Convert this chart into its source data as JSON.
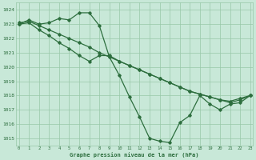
{
  "bg_color": "#c8e8d8",
  "line_color": "#2d6e3e",
  "grid_color": "#98c8a8",
  "title": "Graphe pression niveau de la mer (hPa)",
  "ylim": [
    1014.5,
    1024.5
  ],
  "xlim": [
    -0.3,
    23.3
  ],
  "yticks": [
    1015,
    1016,
    1017,
    1018,
    1019,
    1020,
    1021,
    1022,
    1023,
    1024
  ],
  "xticks": [
    0,
    1,
    2,
    3,
    4,
    5,
    6,
    7,
    8,
    9,
    10,
    11,
    12,
    13,
    14,
    15,
    16,
    17,
    18,
    19,
    20,
    21,
    22,
    23
  ],
  "series1": {
    "x": [
      0,
      1,
      2,
      3,
      4,
      5,
      6,
      7,
      8,
      9,
      10,
      11,
      12,
      13,
      14,
      15,
      16,
      17,
      18,
      19,
      20,
      21,
      22,
      23
    ],
    "y": [
      1023.0,
      1023.3,
      1023.0,
      1023.1,
      1023.4,
      1023.3,
      1023.8,
      1023.8,
      1022.9,
      1020.7,
      1019.4,
      1017.9,
      1016.5,
      1015.0,
      1014.8,
      1014.7,
      1016.1,
      1016.6,
      1018.0,
      1017.4,
      1017.0,
      1017.4,
      1017.5,
      1018.0
    ]
  },
  "series2": {
    "x": [
      0,
      1,
      2,
      3,
      4,
      5,
      6,
      7,
      8,
      9,
      10,
      11,
      12,
      13,
      14,
      15,
      16,
      17,
      18,
      19,
      20,
      21,
      22,
      23
    ],
    "y": [
      1023.0,
      1023.1,
      1022.6,
      1022.2,
      1021.7,
      1021.3,
      1020.8,
      1020.4,
      1020.8,
      1020.8,
      1020.4,
      1020.1,
      1019.8,
      1019.5,
      1019.2,
      1018.9,
      1018.6,
      1018.3,
      1018.1,
      1017.9,
      1017.7,
      1017.6,
      1017.8,
      1018.0
    ]
  },
  "series3": {
    "x": [
      0,
      1,
      2,
      3,
      4,
      5,
      6,
      7,
      8,
      9,
      10,
      11,
      12,
      13,
      14,
      15,
      16,
      17,
      18,
      19,
      20,
      21,
      22,
      23
    ],
    "y": [
      1023.1,
      1023.2,
      1022.9,
      1022.6,
      1022.3,
      1022.0,
      1021.7,
      1021.4,
      1021.0,
      1020.7,
      1020.4,
      1020.1,
      1019.8,
      1019.5,
      1019.2,
      1018.9,
      1018.6,
      1018.3,
      1018.1,
      1017.9,
      1017.7,
      1017.5,
      1017.7,
      1018.0
    ]
  }
}
